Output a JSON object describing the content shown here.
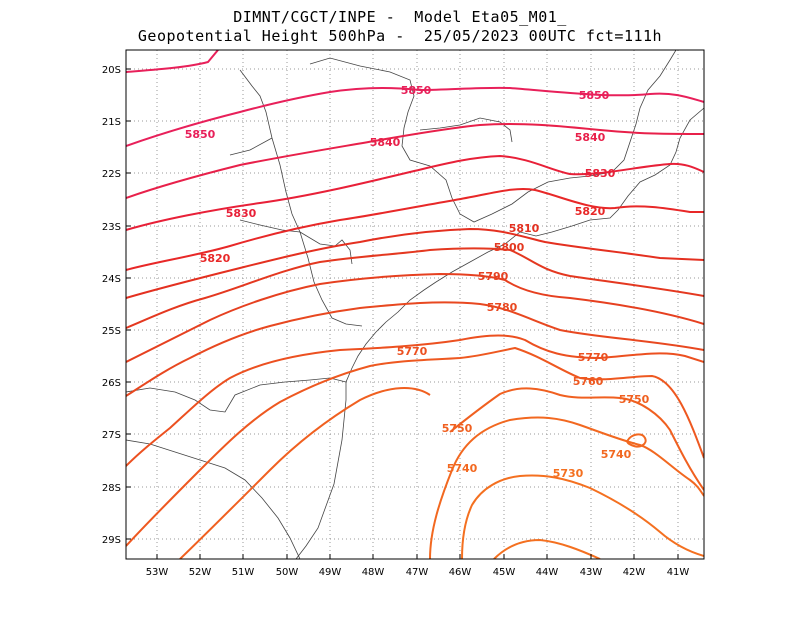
{
  "header": {
    "line1": "DIMNT/CGCT/INPE -  Model Eta05_M01_",
    "line2": "Geopotential Height 500hPa -  25/05/2023 00UTC fct=111h"
  },
  "axes": {
    "lat_labels": [
      "20S",
      "21S",
      "22S",
      "23S",
      "24S",
      "25S",
      "26S",
      "27S",
      "28S",
      "29S"
    ],
    "lon_labels": [
      "53W",
      "52W",
      "51W",
      "50W",
      "49W",
      "48W",
      "47W",
      "46W",
      "45W",
      "44W",
      "43W",
      "42W",
      "41W"
    ]
  },
  "colors": {
    "c5850": "#e8205a",
    "c5840": "#e8204a",
    "c5830": "#e82038",
    "c5820": "#e82828",
    "c5810": "#e43020",
    "c5800": "#e43820",
    "c5790": "#e64020",
    "c5780": "#e84820",
    "c5770": "#ec5020",
    "c5760": "#ee5820",
    "c5750": "#f06020",
    "c5740": "#f26820",
    "c5730": "#f47020",
    "grid": "#999999",
    "coast": "#444444"
  },
  "contours": {
    "c5850": {
      "value": 5850,
      "labels": [
        "5850",
        "5850",
        "5850"
      ]
    },
    "c5840": {
      "value": 5840,
      "labels": [
        "5840",
        "5840"
      ]
    },
    "c5830": {
      "value": 5830,
      "labels": [
        "5830",
        "5830"
      ]
    },
    "c5820": {
      "value": 5820,
      "labels": [
        "5820",
        "5820"
      ]
    },
    "c5810": {
      "value": 5810,
      "labels": [
        "5810"
      ]
    },
    "c5800": {
      "value": 5800,
      "labels": [
        "5800"
      ]
    },
    "c5790": {
      "value": 5790,
      "labels": [
        "5790"
      ]
    },
    "c5780": {
      "value": 5780,
      "labels": [
        "5780"
      ]
    },
    "c5770": {
      "value": 5770,
      "labels": [
        "5770",
        "5770"
      ]
    },
    "c5760": {
      "value": 5760,
      "labels": [
        "5760"
      ]
    },
    "c5750": {
      "value": 5750,
      "labels": [
        "5750",
        "5750"
      ]
    },
    "c5740": {
      "value": 5740,
      "labels": [
        "5740",
        "5740"
      ]
    },
    "c5730": {
      "value": 5730,
      "labels": [
        "5730"
      ]
    }
  }
}
